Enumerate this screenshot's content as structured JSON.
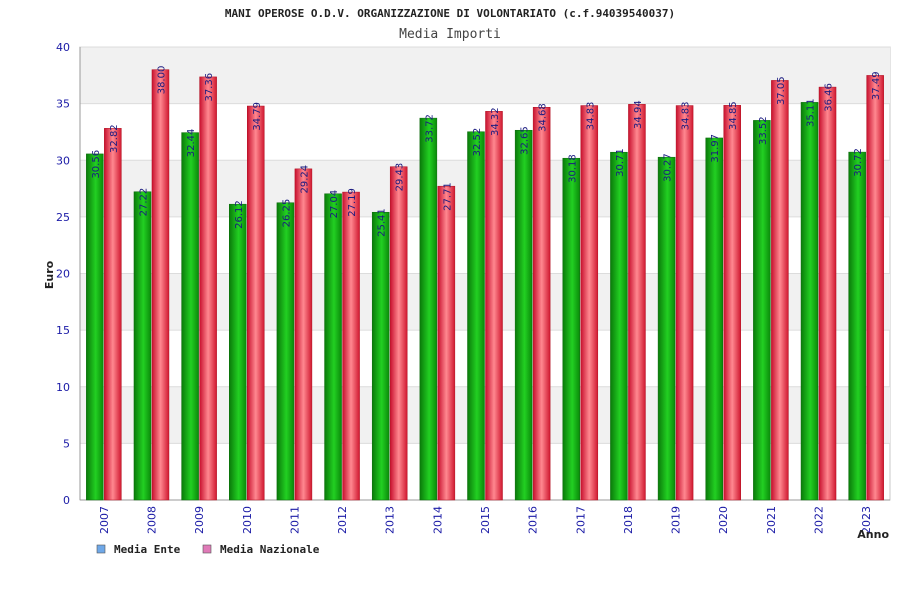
{
  "chart_data": {
    "type": "bar",
    "title": "MANI OPEROSE O.D.V. ORGANIZZAZIONE DI VOLONTARIATO (c.f.94039540037)",
    "subtitle": "Media Importi",
    "ylabel": "Euro",
    "xlabel": "Anno",
    "ylim": [
      0,
      40
    ],
    "yticks": [
      0,
      5,
      10,
      15,
      20,
      25,
      30,
      35,
      40
    ],
    "grid": true,
    "legend_position": "bottom-left",
    "categories": [
      "2007",
      "2008",
      "2009",
      "2010",
      "2011",
      "2012",
      "2013",
      "2014",
      "2015",
      "2016",
      "2017",
      "2018",
      "2019",
      "2020",
      "2021",
      "2022",
      "2023"
    ],
    "series": [
      {
        "name": "Media Ente",
        "legend_color": "#6fa8e8",
        "bar_color": "#1aa51a",
        "values": [
          30.56,
          27.22,
          32.44,
          26.12,
          26.25,
          27.04,
          25.41,
          33.72,
          32.52,
          32.65,
          30.18,
          30.71,
          30.27,
          31.97,
          33.52,
          35.11,
          30.72
        ]
      },
      {
        "name": "Media Nazionale",
        "legend_color": "#e07ab8",
        "bar_color": "#e8303a",
        "values": [
          32.82,
          38.0,
          37.36,
          34.79,
          29.24,
          27.19,
          29.43,
          27.71,
          34.32,
          34.68,
          34.83,
          34.94,
          34.83,
          34.85,
          37.05,
          36.46,
          37.49
        ]
      }
    ],
    "value_labels": [
      [
        "30.56",
        "27.22",
        "32.44",
        "26.12",
        "26.25",
        "27.04",
        "25.41",
        "33.72",
        "32.52",
        "32.65",
        "30.18",
        "30.71",
        "30.27",
        "31.97",
        "33.52",
        "35.11",
        "30.72"
      ],
      [
        "32.82",
        "38.00",
        "37.36",
        "34.79",
        "29.24",
        "27.19",
        "29.43",
        "27.71",
        "34.32",
        "34.68",
        "34.83",
        "34.94",
        "34.83",
        "34.85",
        "37.05",
        "36.46",
        "37.49"
      ]
    ]
  }
}
